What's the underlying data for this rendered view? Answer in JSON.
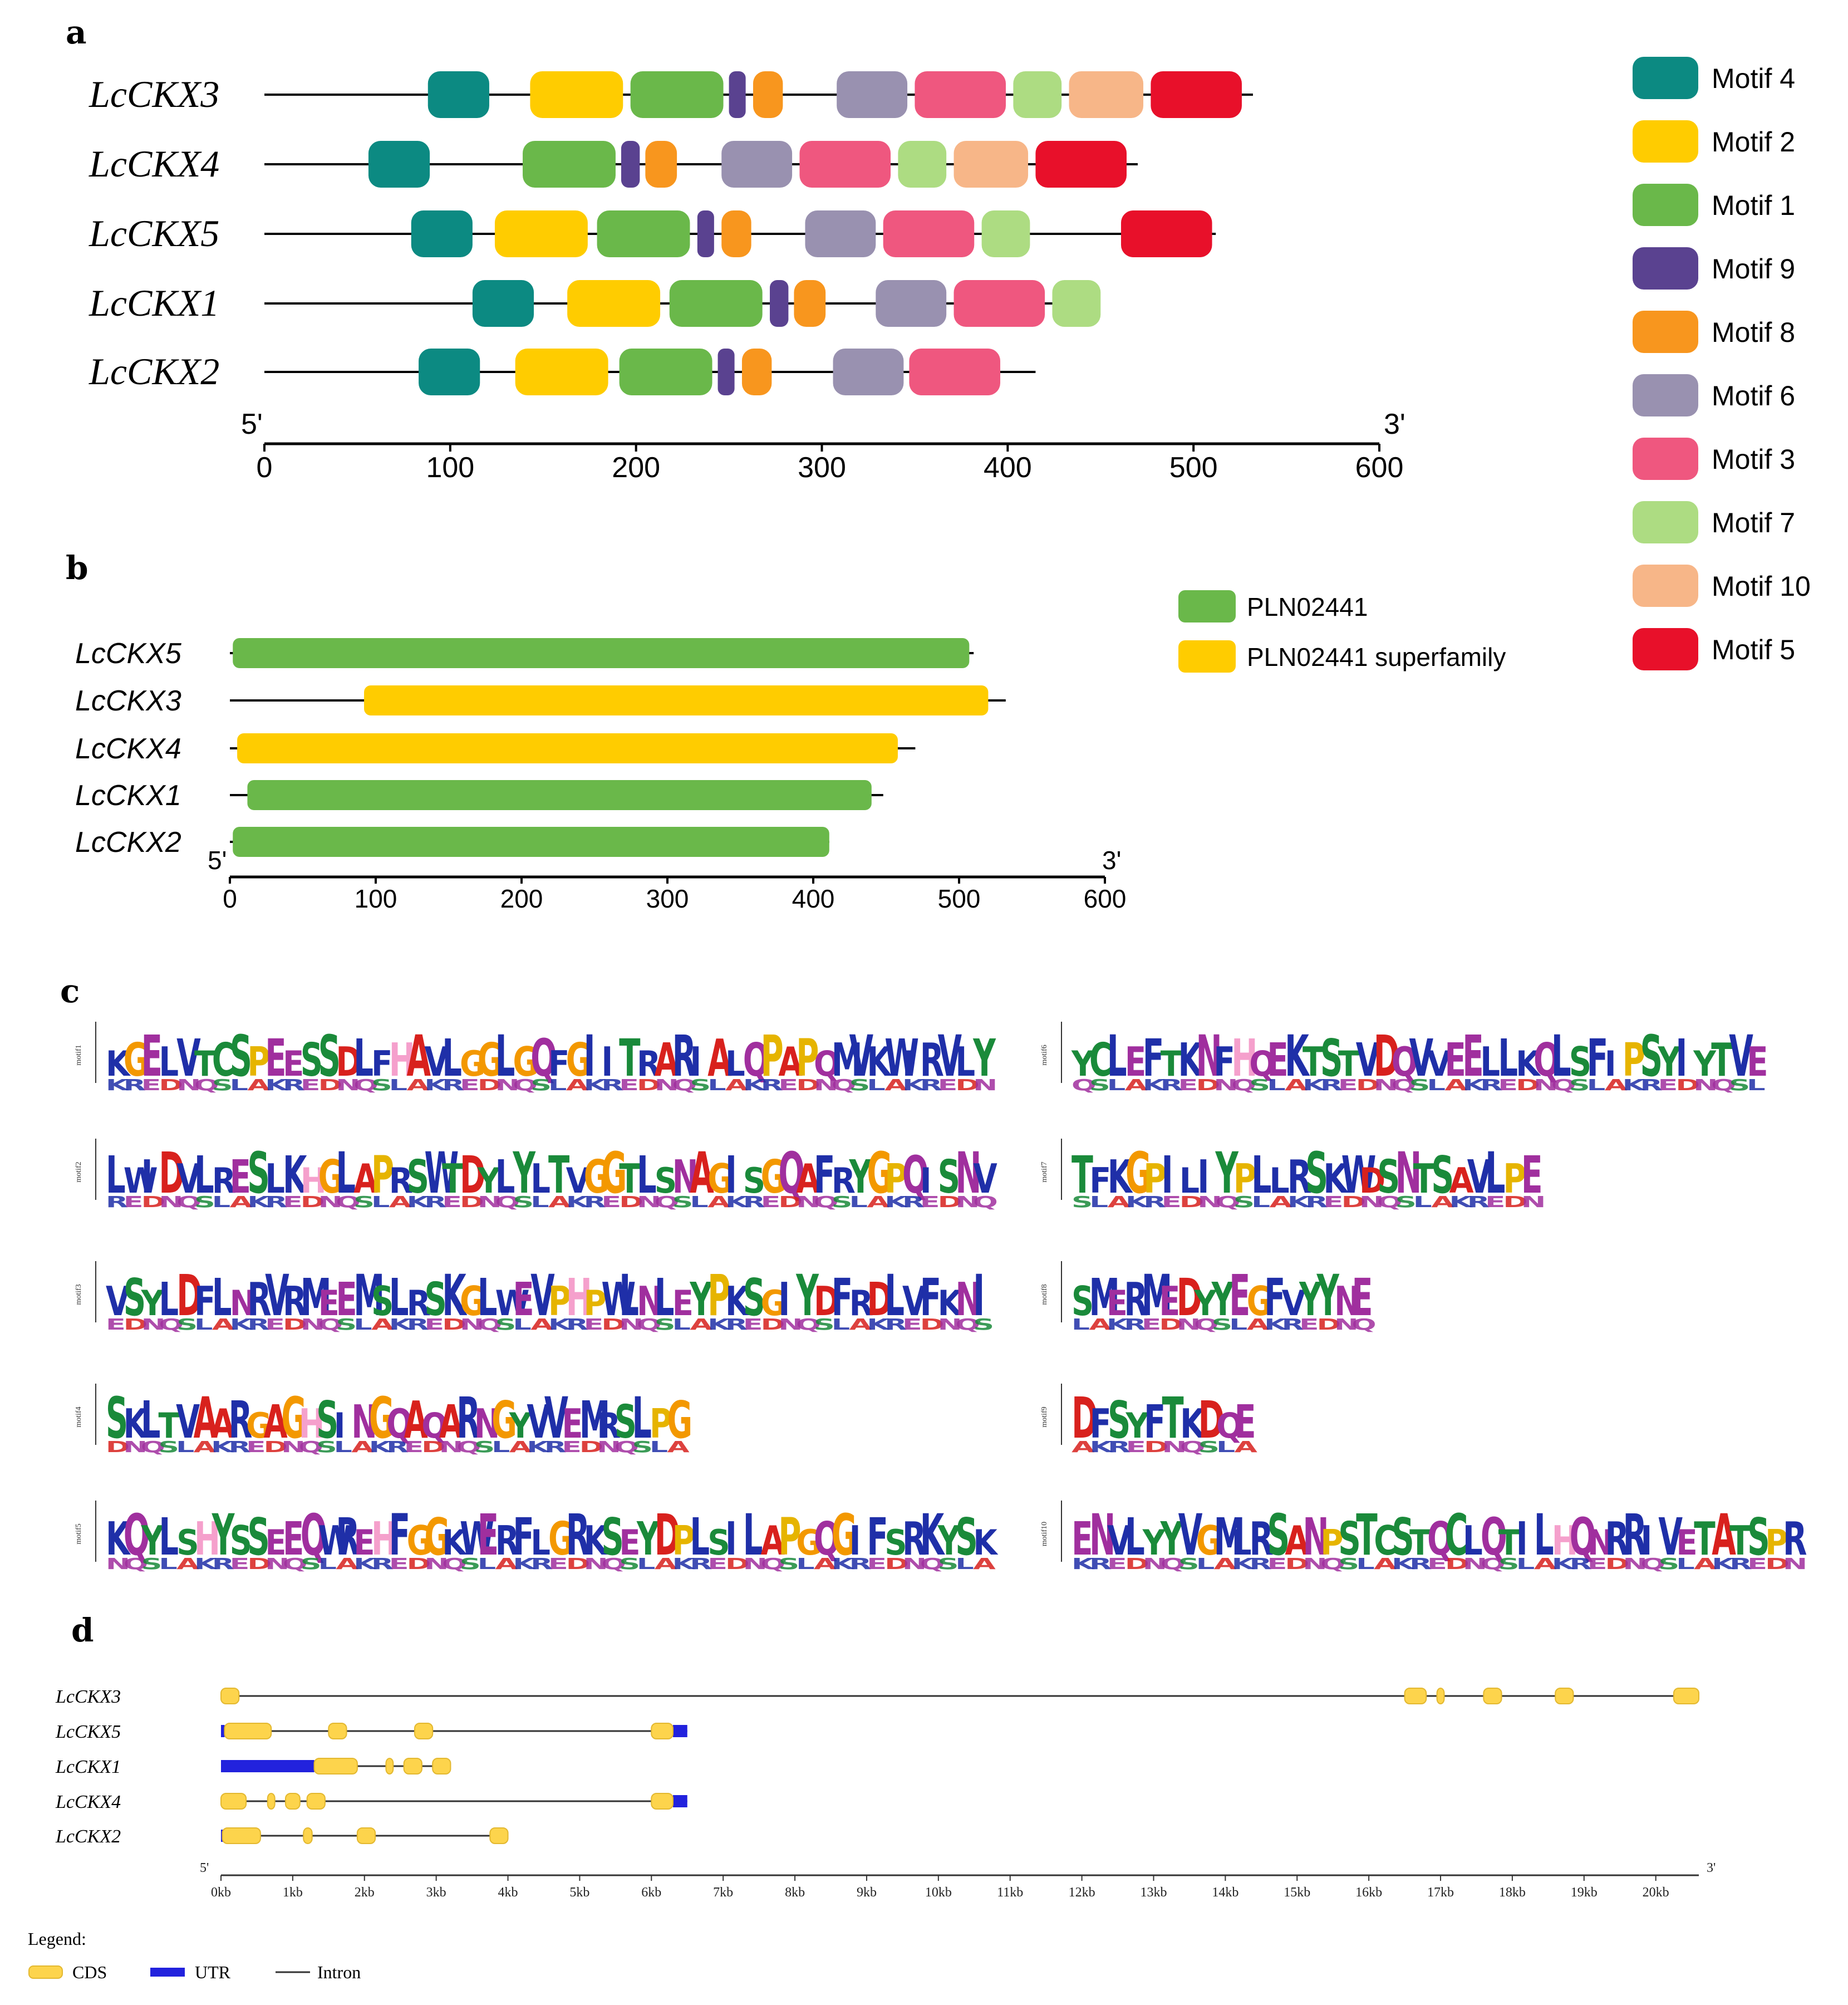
{
  "panels": {
    "a": {
      "letter": "a",
      "genes": [
        {
          "name": "LcCKX3",
          "length": 532,
          "motifs": [
            [
              88,
              121,
              "m4"
            ],
            [
              143,
              193,
              "m2"
            ],
            [
              197,
              247,
              "m1"
            ],
            [
              250,
              259,
              "m9"
            ],
            [
              263,
              279,
              "m8"
            ],
            [
              308,
              346,
              "m6"
            ],
            [
              350,
              399,
              "m3"
            ],
            [
              403,
              429,
              "m7"
            ],
            [
              433,
              473,
              "m10"
            ],
            [
              477,
              526,
              "m5"
            ]
          ]
        },
        {
          "name": "LcCKX4",
          "length": 470,
          "motifs": [
            [
              56,
              89,
              "m4"
            ],
            [
              139,
              189,
              "m1"
            ],
            [
              192,
              202,
              "m9"
            ],
            [
              205,
              222,
              "m8"
            ],
            [
              246,
              284,
              "m6"
            ],
            [
              288,
              337,
              "m3"
            ],
            [
              341,
              367,
              "m7"
            ],
            [
              371,
              411,
              "m10"
            ],
            [
              415,
              464,
              "m5"
            ]
          ]
        },
        {
          "name": "LcCKX5",
          "length": 512,
          "motifs": [
            [
              79,
              112,
              "m4"
            ],
            [
              124,
              174,
              "m2"
            ],
            [
              179,
              229,
              "m1"
            ],
            [
              233,
              242,
              "m9"
            ],
            [
              246,
              262,
              "m8"
            ],
            [
              291,
              329,
              "m6"
            ],
            [
              333,
              382,
              "m3"
            ],
            [
              386,
              412,
              "m7"
            ],
            [
              461,
              510,
              "m5"
            ]
          ]
        },
        {
          "name": "LcCKX1",
          "length": 449,
          "motifs": [
            [
              112,
              145,
              "m4"
            ],
            [
              163,
              213,
              "m2"
            ],
            [
              218,
              268,
              "m1"
            ],
            [
              272,
              282,
              "m9"
            ],
            [
              285,
              302,
              "m8"
            ],
            [
              329,
              367,
              "m6"
            ],
            [
              371,
              420,
              "m3"
            ],
            [
              424,
              450,
              "m7"
            ]
          ]
        },
        {
          "name": "LcCKX2",
          "length": 415,
          "motifs": [
            [
              83,
              116,
              "m4"
            ],
            [
              135,
              185,
              "m2"
            ],
            [
              191,
              241,
              "m1"
            ],
            [
              244,
              253,
              "m9"
            ],
            [
              257,
              273,
              "m8"
            ],
            [
              306,
              344,
              "m6"
            ],
            [
              347,
              396,
              "m3"
            ]
          ]
        }
      ],
      "axis": {
        "five": "5'",
        "three": "3'",
        "ticks": [
          "0",
          "100",
          "200",
          "300",
          "400",
          "500",
          "600"
        ],
        "max": 600
      }
    },
    "motif_legend": [
      {
        "key": "m4",
        "label": "Motif 4",
        "color": "#0c8a82"
      },
      {
        "key": "m2",
        "label": "Motif 2",
        "color": "#ffcc00"
      },
      {
        "key": "m1",
        "label": "Motif 1",
        "color": "#6ab84a"
      },
      {
        "key": "m9",
        "label": "Motif 9",
        "color": "#5a4290"
      },
      {
        "key": "m8",
        "label": "Motif 8",
        "color": "#f8961e"
      },
      {
        "key": "m6",
        "label": "Motif 6",
        "color": "#9991b0"
      },
      {
        "key": "m3",
        "label": "Motif 3",
        "color": "#ef577f"
      },
      {
        "key": "m7",
        "label": "Motif 7",
        "color": "#addc82"
      },
      {
        "key": "m10",
        "label": "Motif 10",
        "color": "#f7b688"
      },
      {
        "key": "m5",
        "label": "Motif 5",
        "color": "#e8102a"
      }
    ],
    "b": {
      "letter": "b",
      "genes": [
        {
          "name": "LcCKX5",
          "length": 510,
          "domain": [
            2,
            507,
            "pln"
          ]
        },
        {
          "name": "LcCKX3",
          "length": 532,
          "domain": [
            92,
            520,
            "sup"
          ]
        },
        {
          "name": "LcCKX4",
          "length": 470,
          "domain": [
            5,
            458,
            "sup"
          ]
        },
        {
          "name": "LcCKX1",
          "length": 448,
          "domain": [
            12,
            440,
            "pln"
          ]
        },
        {
          "name": "LcCKX2",
          "length": 411,
          "domain": [
            2,
            411,
            "pln"
          ]
        }
      ],
      "legend": [
        {
          "key": "pln",
          "label": "PLN02441",
          "color": "#6ab84a"
        },
        {
          "key": "sup",
          "label": "PLN02441 superfamily",
          "color": "#ffcc00"
        }
      ],
      "axis": {
        "five": "5'",
        "three": "3'",
        "ticks": [
          "0",
          "100",
          "200",
          "300",
          "400",
          "500",
          "600"
        ],
        "max": 600
      }
    },
    "c": {
      "letter": "c",
      "logos": [
        {
          "label": "motif1",
          "seq": "KGELVTCSPEESSDLFHAVLGGLGQFGIITRARIALQPAPQMVKWIRVLY"
        },
        {
          "label": "motif2",
          "seq": "LWIDVLRESLKHGLAPRSWTDYLYLTVGGTLSNAGISGQAFRYGPQISNV"
        },
        {
          "label": "motif3",
          "seq": "VSYLDFLNRVRMEEMSLRSKGLWEVPHPWLNLEYPKSGIYDFRDLVFKNI"
        },
        {
          "label": "motif4",
          "seq": "SKLTVAARGAGHSINGQAQARNGYVVEMRSLPG"
        },
        {
          "label": "motif5",
          "seq": "KQYLSHYSSEEQWREHFGGKWERFLGRKSEYDPLSILAPGQGIFSRKYSK"
        },
        {
          "label": "motif6",
          "seq": "YCLEFTKNFHQEKTSTVDQVVEELLKQLSFIPSYIYTVE"
        },
        {
          "label": "motif7",
          "seq": "TFKGPILIYPLLRSKWDSNTSAVLPE"
        },
        {
          "label": "motif8",
          "seq": "SMERMEDYYEGFVYYNE"
        },
        {
          "label": "motif9",
          "seq": "DFSYFTKDQE"
        },
        {
          "label": "motif10",
          "seq": "ENVLYYVGMLRSANPSTCSTQCLQTILHQNRRIVETATSPR"
        }
      ]
    },
    "d": {
      "letter": "d",
      "genes": [
        {
          "name": "LcCKX3",
          "total": 20.6,
          "cds": [
            [
              0,
              0.25
            ],
            [
              16.5,
              16.8
            ],
            [
              16.95,
              17.05
            ],
            [
              17.6,
              17.85
            ],
            [
              18.6,
              18.85
            ],
            [
              20.25,
              20.6
            ]
          ],
          "utr": []
        },
        {
          "name": "LcCKX5",
          "total": 6.5,
          "cds": [
            [
              0.05,
              0.7
            ],
            [
              1.5,
              1.75
            ],
            [
              2.7,
              2.95
            ],
            [
              6.0,
              6.3
            ]
          ],
          "utr": [
            [
              0,
              0.05
            ],
            [
              6.3,
              6.5
            ]
          ]
        },
        {
          "name": "LcCKX1",
          "total": 3.1,
          "cds": [
            [
              1.3,
              1.9
            ],
            [
              2.3,
              2.4
            ],
            [
              2.55,
              2.8
            ],
            [
              2.95,
              3.2
            ]
          ],
          "utr": [
            [
              0,
              1.3
            ]
          ]
        },
        {
          "name": "LcCKX4",
          "total": 6.5,
          "cds": [
            [
              0,
              0.35
            ],
            [
              0.65,
              0.75
            ],
            [
              0.9,
              1.1
            ],
            [
              1.2,
              1.45
            ],
            [
              6.0,
              6.3
            ]
          ],
          "utr": [
            [
              6.3,
              6.5
            ]
          ]
        },
        {
          "name": "LcCKX2",
          "total": 3.9,
          "cds": [
            [
              0.02,
              0.55
            ],
            [
              1.15,
              1.27
            ],
            [
              1.9,
              2.15
            ],
            [
              3.75,
              4.0
            ]
          ],
          "utr": [
            [
              0,
              0.02
            ]
          ]
        }
      ],
      "axis": {
        "five": "5'",
        "three": "3'",
        "ticks": [
          "0kb",
          "1kb",
          "2kb",
          "3kb",
          "4kb",
          "5kb",
          "6kb",
          "7kb",
          "8kb",
          "9kb",
          "10kb",
          "11kb",
          "12kb",
          "13kb",
          "14kb",
          "15kb",
          "16kb",
          "17kb",
          "18kb",
          "19kb",
          "20kb"
        ],
        "max": 20.6
      },
      "legend": {
        "title": "Legend:",
        "cds": "CDS",
        "utr": "UTR",
        "intron": "Intron",
        "cds_color": "#fdd44c",
        "utr_color": "#2222dd"
      }
    }
  }
}
